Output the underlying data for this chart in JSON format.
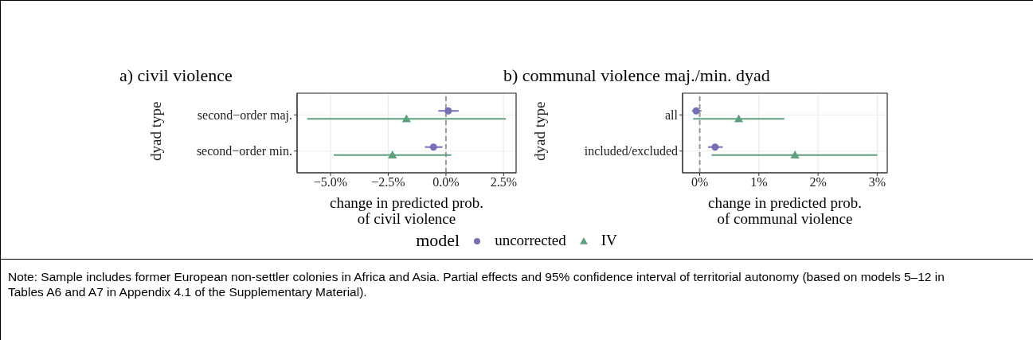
{
  "chart_data": [
    {
      "type": "scatter",
      "title": "a) civil violence",
      "xlabel": "change in predicted prob.\nof civil violence",
      "ylabel": "dyad type",
      "legend_title": "model",
      "legend": "bottom",
      "grid": true,
      "orientation": "horizontal",
      "categories": [
        "second−order maj.",
        "second−order min."
      ],
      "xlim": [
        -6.45,
        3.04
      ],
      "xticks": [
        {
          "value": -5,
          "label": "−5.0%"
        },
        {
          "value": -2.5,
          "label": "−2.5%"
        },
        {
          "value": 0,
          "label": "0.0%"
        },
        {
          "value": 2.5,
          "label": "2.5%"
        }
      ],
      "ref_lines": [
        {
          "axis": "x",
          "value": 0,
          "color": "#999999",
          "line_style": "dashed"
        }
      ],
      "series": [
        {
          "name": "uncorrected",
          "color": "#7570b3",
          "marker": "circle",
          "values": [
            0.1,
            -0.54
          ],
          "errors": [
            [
              -0.33,
              0.55
            ],
            [
              -0.91,
              -0.15
            ]
          ]
        },
        {
          "name": "IV",
          "color": "#5fa17c",
          "marker": "triangle",
          "values": [
            -1.71,
            -2.32
          ],
          "errors": [
            [
              -6.01,
              2.6
            ],
            [
              -4.86,
              0.23
            ]
          ]
        }
      ],
      "annotations": [
        "Note: Sample includes former European non-settler colonies in Africa and Asia. Partial effects and 95% confidence interval of territorial autonomy (based on models 5–12 in Tables A6 and A7 in Appendix 4.1 of the Supplementary Material)."
      ]
    },
    {
      "type": "scatter",
      "title": "b) communal violence maj./min. dyad",
      "xlabel": "change in predicted prob.\nof communal violence",
      "ylabel": "dyad type",
      "grid": true,
      "orientation": "horizontal",
      "categories": [
        "all",
        "included/excluded"
      ],
      "xlim": [
        -0.29,
        3.17
      ],
      "xticks": [
        {
          "value": 0,
          "label": "0%"
        },
        {
          "value": 1,
          "label": "1%"
        },
        {
          "value": 2,
          "label": "2%"
        },
        {
          "value": 3,
          "label": "3%"
        }
      ],
      "ref_lines": [
        {
          "axis": "x",
          "value": 0,
          "color": "#999999",
          "line_style": "dashed"
        }
      ],
      "series": [
        {
          "color": "#7570b3",
          "marker": "circle",
          "values": [
            -0.06,
            0.26
          ],
          "errors": [
            [
              -0.13,
              0.03
            ],
            [
              0.14,
              0.39
            ]
          ]
        },
        {
          "color": "#5fa17c",
          "marker": "triangle",
          "values": [
            0.66,
            1.61
          ],
          "errors": [
            [
              -0.11,
              1.43
            ],
            [
              0.2,
              3.0
            ]
          ]
        }
      ]
    }
  ]
}
